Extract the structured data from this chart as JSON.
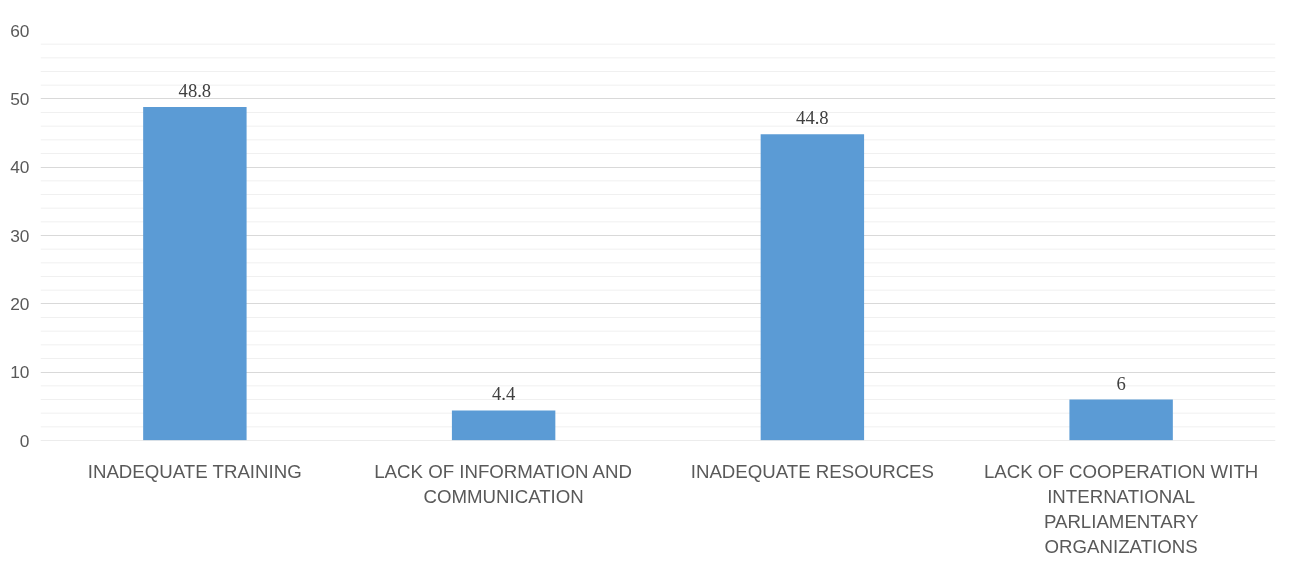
{
  "chart_data": {
    "type": "bar",
    "categories": [
      "INADEQUATE TRAINING",
      "LACK OF INFORMATION AND COMMUNICATION",
      "INADEQUATE RESOURCES",
      "LACK OF COOPERATION WITH INTERNATIONAL PARLIAMENTARY ORGANIZATIONS"
    ],
    "values": [
      48.8,
      4.4,
      44.8,
      6
    ],
    "color": "#5b9bd5",
    "ylim": [
      0,
      60
    ],
    "yticks": [
      0,
      {
        "value": 2,
        "label": null
      },
      {
        "value": 4,
        "label": null
      },
      {
        "value": 6,
        "label": null
      },
      {
        "value": 8,
        "label": null
      },
      10,
      {
        "value": 12,
        "label": null
      },
      {
        "value": 14,
        "label": null
      },
      {
        "value": 16,
        "label": null
      },
      {
        "value": 18,
        "label": null
      },
      20,
      {
        "value": 22,
        "label": null
      },
      {
        "value": 24,
        "label": null
      },
      {
        "value": 26,
        "label": null
      },
      {
        "value": 28,
        "label": null
      },
      30,
      {
        "value": 32,
        "label": null
      },
      {
        "value": 34,
        "label": null
      },
      {
        "value": 36,
        "label": null
      },
      {
        "value": 38,
        "label": null
      },
      40,
      {
        "value": 42,
        "label": null
      },
      {
        "value": 44,
        "label": null
      },
      {
        "value": 46,
        "label": null
      },
      {
        "value": 48,
        "label": null
      },
      50,
      {
        "value": 52,
        "label": null
      },
      {
        "value": 54,
        "label": null
      },
      {
        "value": 56,
        "label": null
      },
      {
        "value": 58,
        "label": null
      },
      60
    ],
    "grid": "y",
    "data_labels": true
  }
}
